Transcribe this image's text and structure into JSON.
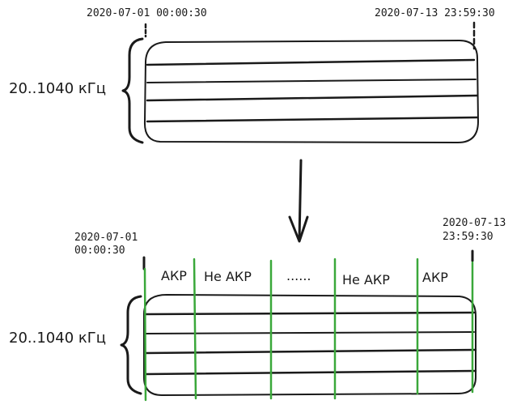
{
  "top": {
    "start_time": "2020-07-01 00:00:30",
    "end_time": "2020-07-13 23:59:30",
    "frequency_range": "20..1040 кГц"
  },
  "bottom": {
    "start_date": "2020-07-01",
    "start_clock": "00:00:30",
    "end_date": "2020-07-13",
    "end_clock": "23:59:30",
    "frequency_range": "20..1040 кГц",
    "segments": [
      "АКР",
      "Не АКР",
      "......",
      "Не АКР",
      "АКР"
    ]
  },
  "colors": {
    "stroke": "#1a1a1a",
    "divider": "#3aa83a",
    "background": "#ffffff"
  }
}
